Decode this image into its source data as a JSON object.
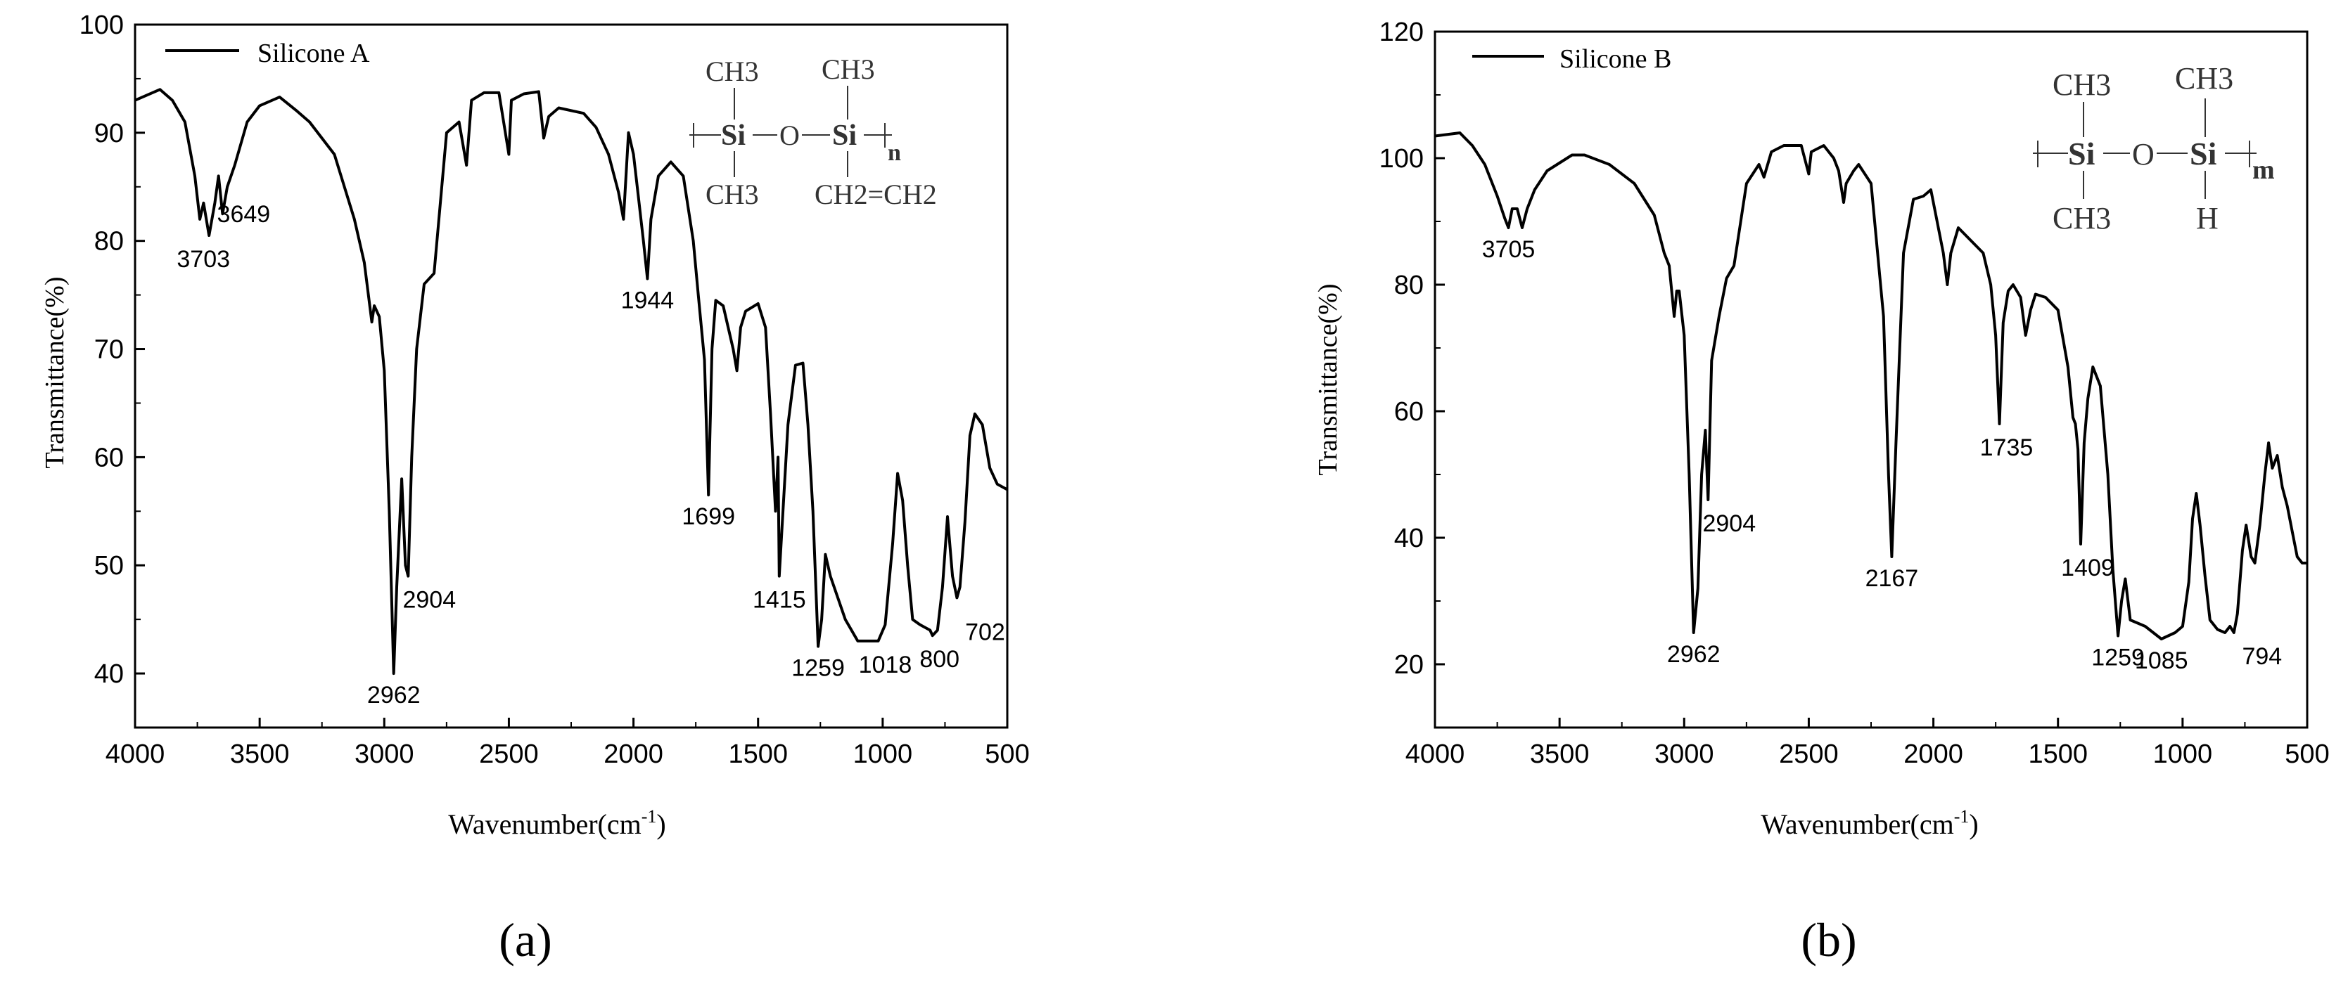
{
  "chart_data": [
    {
      "type": "line",
      "panel_label": "(a)",
      "xlabel": "Wavenumber(cm",
      "xlabel_sup": "-1",
      "xlabel_end": ")",
      "ylabel": "Transmittance(%)",
      "xlim": [
        4000,
        500
      ],
      "ylim": [
        35,
        100
      ],
      "xticks": [
        4000,
        3500,
        3000,
        2500,
        2000,
        1500,
        1000,
        500
      ],
      "yticks": [
        40,
        50,
        60,
        70,
        80,
        90,
        100
      ],
      "legend": "Silicone A",
      "structure": {
        "top1": "CH3",
        "top2": "CH3",
        "left": "Si",
        "mid": "O",
        "right": "Si",
        "sub": "n",
        "bot1": "CH3",
        "bot2": "CH2=CH2"
      },
      "series": [
        {
          "name": "Silicone A",
          "points": [
            [
              4000,
              93
            ],
            [
              3900,
              94
            ],
            [
              3850,
              93
            ],
            [
              3800,
              91
            ],
            [
              3760,
              86
            ],
            [
              3740,
              82
            ],
            [
              3725,
              83.5
            ],
            [
              3703,
              80.5
            ],
            [
              3680,
              83.5
            ],
            [
              3665,
              86
            ],
            [
              3649,
              82.5
            ],
            [
              3630,
              85
            ],
            [
              3600,
              87
            ],
            [
              3550,
              91
            ],
            [
              3500,
              92.5
            ],
            [
              3420,
              93.3
            ],
            [
              3350,
              92
            ],
            [
              3300,
              91
            ],
            [
              3200,
              88
            ],
            [
              3120,
              82
            ],
            [
              3080,
              78
            ],
            [
              3050,
              72.5
            ],
            [
              3040,
              74
            ],
            [
              3020,
              73
            ],
            [
              3000,
              68
            ],
            [
              2980,
              55
            ],
            [
              2962,
              40
            ],
            [
              2950,
              48
            ],
            [
              2930,
              58
            ],
            [
              2915,
              50
            ],
            [
              2904,
              49
            ],
            [
              2890,
              60
            ],
            [
              2870,
              70
            ],
            [
              2840,
              76
            ],
            [
              2800,
              77
            ],
            [
              2750,
              90
            ],
            [
              2700,
              91
            ],
            [
              2670,
              87
            ],
            [
              2650,
              93
            ],
            [
              2600,
              93.7
            ],
            [
              2540,
              93.7
            ],
            [
              2500,
              88
            ],
            [
              2490,
              93
            ],
            [
              2440,
              93.6
            ],
            [
              2380,
              93.8
            ],
            [
              2360,
              89.5
            ],
            [
              2340,
              91.5
            ],
            [
              2300,
              92.3
            ],
            [
              2200,
              91.8
            ],
            [
              2150,
              90.5
            ],
            [
              2100,
              88
            ],
            [
              2060,
              84.5
            ],
            [
              2040,
              82
            ],
            [
              2020,
              90
            ],
            [
              2000,
              88
            ],
            [
              1980,
              84
            ],
            [
              1960,
              80
            ],
            [
              1944,
              76.5
            ],
            [
              1930,
              82
            ],
            [
              1900,
              86
            ],
            [
              1850,
              87.3
            ],
            [
              1800,
              86
            ],
            [
              1760,
              80
            ],
            [
              1740,
              75
            ],
            [
              1715,
              69
            ],
            [
              1699,
              56.5
            ],
            [
              1685,
              70
            ],
            [
              1670,
              74.5
            ],
            [
              1640,
              74
            ],
            [
              1600,
              70
            ],
            [
              1585,
              68
            ],
            [
              1570,
              72
            ],
            [
              1550,
              73.5
            ],
            [
              1500,
              74.2
            ],
            [
              1470,
              72
            ],
            [
              1450,
              64
            ],
            [
              1430,
              55
            ],
            [
              1420,
              60
            ],
            [
              1415,
              49
            ],
            [
              1400,
              55
            ],
            [
              1380,
              63
            ],
            [
              1350,
              68.5
            ],
            [
              1320,
              68.7
            ],
            [
              1300,
              63
            ],
            [
              1280,
              55
            ],
            [
              1259,
              42.5
            ],
            [
              1245,
              45
            ],
            [
              1230,
              51
            ],
            [
              1210,
              49
            ],
            [
              1150,
              45
            ],
            [
              1100,
              43
            ],
            [
              1018,
              43
            ],
            [
              990,
              44.5
            ],
            [
              960,
              52
            ],
            [
              940,
              58.5
            ],
            [
              920,
              56
            ],
            [
              900,
              50
            ],
            [
              880,
              45
            ],
            [
              850,
              44.5
            ],
            [
              810,
              44
            ],
            [
              800,
              43.5
            ],
            [
              780,
              44
            ],
            [
              760,
              48
            ],
            [
              740,
              54.5
            ],
            [
              720,
              49
            ],
            [
              702,
              47
            ],
            [
              690,
              48
            ],
            [
              670,
              54
            ],
            [
              650,
              62
            ],
            [
              630,
              64
            ],
            [
              600,
              63
            ],
            [
              570,
              59
            ],
            [
              540,
              57.5
            ],
            [
              500,
              57
            ]
          ]
        }
      ],
      "annotations": [
        {
          "text": "3703",
          "x": 3703,
          "y": 80.5
        },
        {
          "text": "3649",
          "x": 3649,
          "y": 82.5
        },
        {
          "text": "2962",
          "x": 2962,
          "y": 40
        },
        {
          "text": "2904",
          "x": 2904,
          "y": 49
        },
        {
          "text": "1944",
          "x": 1944,
          "y": 76.5
        },
        {
          "text": "1699",
          "x": 1699,
          "y": 56.5
        },
        {
          "text": "1415",
          "x": 1415,
          "y": 49
        },
        {
          "text": "1259",
          "x": 1259,
          "y": 42.5
        },
        {
          "text": "1018",
          "x": 1018,
          "y": 43
        },
        {
          "text": "800",
          "x": 800,
          "y": 43.5
        },
        {
          "text": "702",
          "x": 702,
          "y": 47
        }
      ]
    },
    {
      "type": "line",
      "panel_label": "(b)",
      "xlabel": "Wavenumber(cm",
      "xlabel_sup": "-1",
      "xlabel_end": ")",
      "ylabel": "Transmittance(%)",
      "xlim": [
        4000,
        500
      ],
      "ylim": [
        10,
        120
      ],
      "xticks": [
        4000,
        3500,
        3000,
        2500,
        2000,
        1500,
        1000,
        500
      ],
      "yticks": [
        20,
        40,
        60,
        80,
        100,
        120
      ],
      "legend": "Silicone B",
      "structure": {
        "top1": "CH3",
        "top2": "CH3",
        "left": "Si",
        "mid": "O",
        "right": "Si",
        "sub": "m",
        "bot1": "CH3",
        "bot2": "H"
      },
      "series": [
        {
          "name": "Silicone B",
          "points": [
            [
              4000,
              103.5
            ],
            [
              3900,
              104
            ],
            [
              3850,
              102
            ],
            [
              3800,
              99
            ],
            [
              3750,
              94
            ],
            [
              3720,
              90.5
            ],
            [
              3705,
              89
            ],
            [
              3690,
              92
            ],
            [
              3670,
              92
            ],
            [
              3650,
              89
            ],
            [
              3630,
              92
            ],
            [
              3600,
              95
            ],
            [
              3550,
              98
            ],
            [
              3450,
              100.5
            ],
            [
              3400,
              100.5
            ],
            [
              3300,
              99
            ],
            [
              3200,
              96
            ],
            [
              3120,
              91
            ],
            [
              3080,
              85
            ],
            [
              3060,
              83
            ],
            [
              3040,
              75
            ],
            [
              3030,
              79
            ],
            [
              3020,
              79
            ],
            [
              3000,
              72
            ],
            [
              2980,
              50
            ],
            [
              2962,
              25
            ],
            [
              2945,
              32
            ],
            [
              2930,
              50
            ],
            [
              2915,
              57
            ],
            [
              2904,
              46
            ],
            [
              2890,
              68
            ],
            [
              2860,
              75
            ],
            [
              2830,
              81
            ],
            [
              2800,
              83
            ],
            [
              2750,
              96
            ],
            [
              2700,
              99
            ],
            [
              2680,
              97
            ],
            [
              2650,
              101
            ],
            [
              2600,
              102
            ],
            [
              2530,
              102
            ],
            [
              2500,
              97.5
            ],
            [
              2490,
              101
            ],
            [
              2440,
              102
            ],
            [
              2400,
              100
            ],
            [
              2380,
              98
            ],
            [
              2360,
              93
            ],
            [
              2350,
              96
            ],
            [
              2320,
              98
            ],
            [
              2300,
              99
            ],
            [
              2250,
              96
            ],
            [
              2200,
              75
            ],
            [
              2180,
              50
            ],
            [
              2167,
              37
            ],
            [
              2150,
              55
            ],
            [
              2120,
              85
            ],
            [
              2080,
              93.5
            ],
            [
              2040,
              94
            ],
            [
              2010,
              95
            ],
            [
              1990,
              91
            ],
            [
              1960,
              85
            ],
            [
              1944,
              80
            ],
            [
              1930,
              85
            ],
            [
              1900,
              89
            ],
            [
              1850,
              87
            ],
            [
              1800,
              85
            ],
            [
              1770,
              80
            ],
            [
              1750,
              72
            ],
            [
              1735,
              58
            ],
            [
              1720,
              74
            ],
            [
              1700,
              79
            ],
            [
              1680,
              80
            ],
            [
              1650,
              78
            ],
            [
              1630,
              72
            ],
            [
              1610,
              76
            ],
            [
              1590,
              78.5
            ],
            [
              1550,
              78
            ],
            [
              1500,
              76
            ],
            [
              1460,
              67
            ],
            [
              1440,
              59
            ],
            [
              1430,
              58
            ],
            [
              1420,
              54
            ],
            [
              1409,
              39
            ],
            [
              1395,
              55
            ],
            [
              1380,
              62
            ],
            [
              1360,
              67
            ],
            [
              1330,
              64
            ],
            [
              1300,
              50
            ],
            [
              1280,
              35
            ],
            [
              1259,
              24.5
            ],
            [
              1245,
              30
            ],
            [
              1230,
              33.5
            ],
            [
              1210,
              27
            ],
            [
              1150,
              26
            ],
            [
              1085,
              24
            ],
            [
              1030,
              25
            ],
            [
              1000,
              26
            ],
            [
              975,
              33
            ],
            [
              960,
              43
            ],
            [
              945,
              47
            ],
            [
              930,
              42
            ],
            [
              910,
              34
            ],
            [
              890,
              27
            ],
            [
              860,
              25.5
            ],
            [
              830,
              25
            ],
            [
              810,
              26
            ],
            [
              794,
              25
            ],
            [
              780,
              28
            ],
            [
              760,
              38
            ],
            [
              745,
              42
            ],
            [
              725,
              37
            ],
            [
              710,
              36
            ],
            [
              690,
              42
            ],
            [
              670,
              50
            ],
            [
              655,
              55
            ],
            [
              640,
              51
            ],
            [
              620,
              53
            ],
            [
              600,
              48
            ],
            [
              580,
              45
            ],
            [
              560,
              41
            ],
            [
              540,
              37
            ],
            [
              520,
              36
            ],
            [
              500,
              36
            ]
          ]
        }
      ],
      "annotations": [
        {
          "text": "3705",
          "x": 3705,
          "y": 89
        },
        {
          "text": "2962",
          "x": 2962,
          "y": 25
        },
        {
          "text": "2904",
          "x": 2904,
          "y": 46
        },
        {
          "text": "2167",
          "x": 2167,
          "y": 37
        },
        {
          "text": "1735",
          "x": 1735,
          "y": 58
        },
        {
          "text": "1409",
          "x": 1409,
          "y": 39
        },
        {
          "text": "1259",
          "x": 1259,
          "y": 24.5
        },
        {
          "text": "1085",
          "x": 1085,
          "y": 24
        },
        {
          "text": "794",
          "x": 794,
          "y": 25
        }
      ]
    }
  ]
}
